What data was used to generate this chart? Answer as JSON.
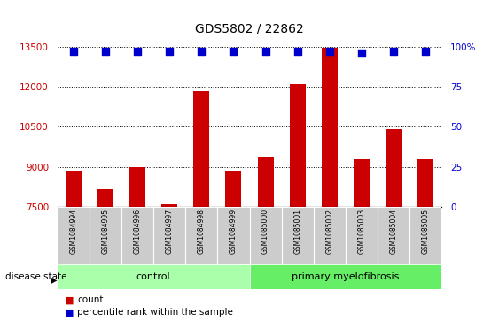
{
  "title": "GDS5802 / 22862",
  "samples": [
    "GSM1084994",
    "GSM1084995",
    "GSM1084996",
    "GSM1084997",
    "GSM1084998",
    "GSM1084999",
    "GSM1085000",
    "GSM1085001",
    "GSM1085002",
    "GSM1085003",
    "GSM1085004",
    "GSM1085005"
  ],
  "counts": [
    8850,
    8150,
    9000,
    7600,
    11850,
    8850,
    9350,
    12100,
    13450,
    9300,
    10400,
    9300
  ],
  "percentile_vals": [
    97,
    97,
    97,
    97,
    97,
    97,
    97,
    97,
    97,
    96,
    97,
    97
  ],
  "control_count": 6,
  "primary_count": 6,
  "ylim_left": [
    7500,
    13500
  ],
  "ylim_right": [
    0,
    100
  ],
  "yticks_left": [
    7500,
    9000,
    10500,
    12000,
    13500
  ],
  "yticks_right": [
    0,
    25,
    50,
    75,
    100
  ],
  "bar_color": "#cc0000",
  "dot_color": "#0000cc",
  "control_color": "#aaffaa",
  "primary_color": "#66ee66",
  "tick_bg": "#cccccc",
  "bar_width": 0.5,
  "dot_size": 40,
  "legend_items": [
    {
      "color": "#cc0000",
      "label": "count"
    },
    {
      "color": "#0000cc",
      "label": "percentile rank within the sample"
    }
  ]
}
